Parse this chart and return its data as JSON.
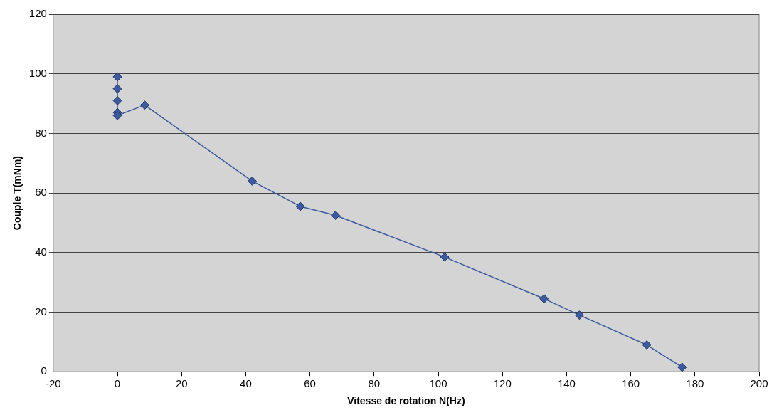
{
  "chart_data": {
    "type": "line",
    "xlabel": "Vitesse de rotation N(Hz)",
    "ylabel": "Couple T(mNm)",
    "x": [
      0,
      0,
      0,
      0,
      0,
      8.5,
      42,
      57,
      68,
      102,
      133,
      144,
      165,
      176
    ],
    "series": [
      {
        "color": "#3b5b9e",
        "values": [
          99,
          95,
          91,
          87,
          86,
          89.5,
          64,
          55.5,
          52.5,
          38.5,
          24.5,
          19,
          9,
          1.5
        ]
      }
    ],
    "xlim": [
      -20,
      200
    ],
    "xticks": [
      -20,
      0,
      20,
      40,
      60,
      80,
      100,
      120,
      140,
      160,
      180,
      200
    ],
    "ylim": [
      0,
      120
    ],
    "yticks": [
      0,
      20,
      40,
      60,
      80,
      100,
      120
    ],
    "grid": "y",
    "legend": false,
    "marker": "diamond",
    "line_style": "solid"
  }
}
